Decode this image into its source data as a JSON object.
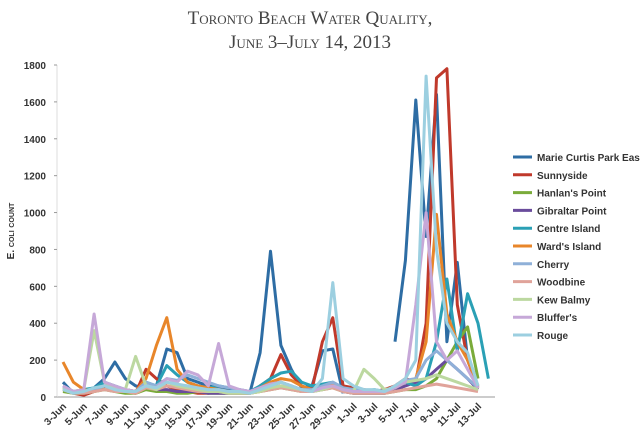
{
  "chart_data": {
    "type": "line",
    "title": "Toronto Beach Water Quality,",
    "subtitle": "June 3–July 14, 2013",
    "y_label": "E. coli count",
    "categories": [
      "3-Jun",
      null,
      "5-Jun",
      null,
      "7-Jun",
      null,
      "9-Jun",
      null,
      "11-Jun",
      null,
      "13-Jun",
      null,
      "15-Jun",
      null,
      "17-Jun",
      null,
      "19-Jun",
      null,
      "21-Jun",
      null,
      "23-Jun",
      null,
      "25-Jun",
      null,
      "27-Jun",
      null,
      "29-Jun",
      null,
      "1-Jul",
      null,
      "3-Jul",
      null,
      "5-Jul",
      null,
      "7-Jul",
      null,
      "9-Jul",
      null,
      "11-Jul",
      null,
      "13-Jul",
      null
    ],
    "ylim": [
      0,
      1800
    ],
    "yticks": [
      0,
      200,
      400,
      600,
      800,
      1000,
      1200,
      1400,
      1600,
      1800
    ],
    "legend": "right",
    "series": [
      {
        "name": "Marie Curtis Park East",
        "color": "#2e6da4",
        "values": [
          80,
          20,
          30,
          50,
          100,
          190,
          100,
          60,
          50,
          60,
          260,
          240,
          100,
          80,
          60,
          50,
          40,
          30,
          20,
          240,
          790,
          280,
          150,
          50,
          60,
          250,
          260,
          20,
          null,
          null,
          null,
          null,
          300,
          740,
          1610,
          870,
          1640,
          300,
          730,
          200,
          60,
          null
        ]
      },
      {
        "name": "Sunnyside",
        "color": "#c0392b",
        "values": [
          40,
          20,
          10,
          30,
          60,
          40,
          30,
          20,
          150,
          100,
          60,
          40,
          30,
          20,
          20,
          30,
          20,
          20,
          20,
          60,
          100,
          230,
          120,
          60,
          40,
          300,
          430,
          60,
          50,
          40,
          30,
          40,
          60,
          100,
          80,
          400,
          1730,
          1780,
          500,
          200,
          50,
          null
        ]
      },
      {
        "name": "Hanlan's Point",
        "color": "#7aab3a",
        "values": [
          30,
          20,
          20,
          30,
          40,
          30,
          20,
          20,
          40,
          30,
          30,
          20,
          20,
          30,
          20,
          20,
          20,
          20,
          20,
          30,
          40,
          50,
          40,
          30,
          30,
          40,
          50,
          30,
          20,
          20,
          20,
          20,
          30,
          40,
          40,
          60,
          100,
          200,
          300,
          380,
          100,
          null
        ]
      },
      {
        "name": "Gibraltar Point",
        "color": "#6a4c9c",
        "values": [
          50,
          30,
          20,
          40,
          60,
          50,
          40,
          30,
          60,
          40,
          40,
          30,
          30,
          30,
          20,
          20,
          20,
          20,
          20,
          40,
          60,
          80,
          60,
          40,
          30,
          50,
          60,
          30,
          20,
          20,
          20,
          20,
          40,
          60,
          80,
          100,
          150,
          200,
          150,
          100,
          40,
          null
        ]
      },
      {
        "name": "Centre Island",
        "color": "#2aa0b5",
        "values": [
          60,
          30,
          40,
          50,
          80,
          60,
          40,
          30,
          80,
          60,
          170,
          120,
          80,
          60,
          50,
          60,
          50,
          40,
          30,
          60,
          100,
          130,
          140,
          80,
          60,
          70,
          80,
          50,
          40,
          30,
          40,
          30,
          50,
          80,
          60,
          100,
          300,
          640,
          250,
          560,
          400,
          100
        ]
      },
      {
        "name": "Ward's Island",
        "color": "#e8862a",
        "values": [
          190,
          80,
          40,
          30,
          60,
          50,
          40,
          30,
          100,
          280,
          430,
          150,
          80,
          60,
          50,
          40,
          30,
          30,
          20,
          50,
          80,
          100,
          90,
          60,
          40,
          50,
          70,
          40,
          30,
          30,
          30,
          30,
          50,
          80,
          100,
          300,
          990,
          450,
          300,
          200,
          60,
          null
        ]
      },
      {
        "name": "Cherry",
        "color": "#8fb0d8",
        "values": [
          60,
          30,
          30,
          40,
          60,
          50,
          40,
          30,
          80,
          60,
          100,
          90,
          120,
          100,
          80,
          60,
          50,
          40,
          30,
          50,
          70,
          80,
          60,
          40,
          40,
          60,
          80,
          50,
          40,
          30,
          30,
          30,
          60,
          90,
          100,
          200,
          250,
          200,
          150,
          100,
          50,
          null
        ]
      },
      {
        "name": "Woodbine",
        "color": "#e0a39a",
        "values": [
          40,
          20,
          20,
          30,
          40,
          30,
          30,
          20,
          50,
          40,
          60,
          50,
          40,
          30,
          30,
          30,
          20,
          20,
          20,
          30,
          40,
          50,
          40,
          30,
          30,
          40,
          50,
          30,
          20,
          20,
          20,
          20,
          30,
          40,
          50,
          60,
          70,
          60,
          50,
          40,
          30,
          null
        ]
      },
      {
        "name": "Kew Balmy",
        "color": "#bcd8a0",
        "values": [
          50,
          30,
          40,
          360,
          80,
          50,
          40,
          220,
          60,
          40,
          80,
          60,
          50,
          40,
          30,
          30,
          20,
          20,
          20,
          30,
          50,
          60,
          50,
          40,
          30,
          40,
          60,
          40,
          30,
          150,
          100,
          40,
          50,
          80,
          90,
          100,
          120,
          100,
          80,
          60,
          40,
          null
        ]
      },
      {
        "name": "Bluffer's",
        "color": "#c6a8d8",
        "values": [
          60,
          30,
          40,
          450,
          80,
          60,
          40,
          30,
          60,
          50,
          100,
          80,
          140,
          120,
          60,
          290,
          60,
          40,
          30,
          50,
          70,
          80,
          60,
          40,
          30,
          50,
          60,
          40,
          30,
          30,
          30,
          30,
          50,
          80,
          500,
          1000,
          300,
          200,
          250,
          150,
          50,
          null
        ]
      },
      {
        "name": "Rouge",
        "color": "#9ccfe0",
        "values": [
          40,
          20,
          30,
          50,
          60,
          40,
          30,
          30,
          60,
          50,
          80,
          70,
          60,
          50,
          40,
          40,
          30,
          30,
          20,
          40,
          60,
          80,
          60,
          40,
          30,
          100,
          620,
          100,
          60,
          40,
          40,
          30,
          60,
          100,
          200,
          1740,
          800,
          400,
          300,
          240,
          60,
          null
        ]
      }
    ]
  }
}
